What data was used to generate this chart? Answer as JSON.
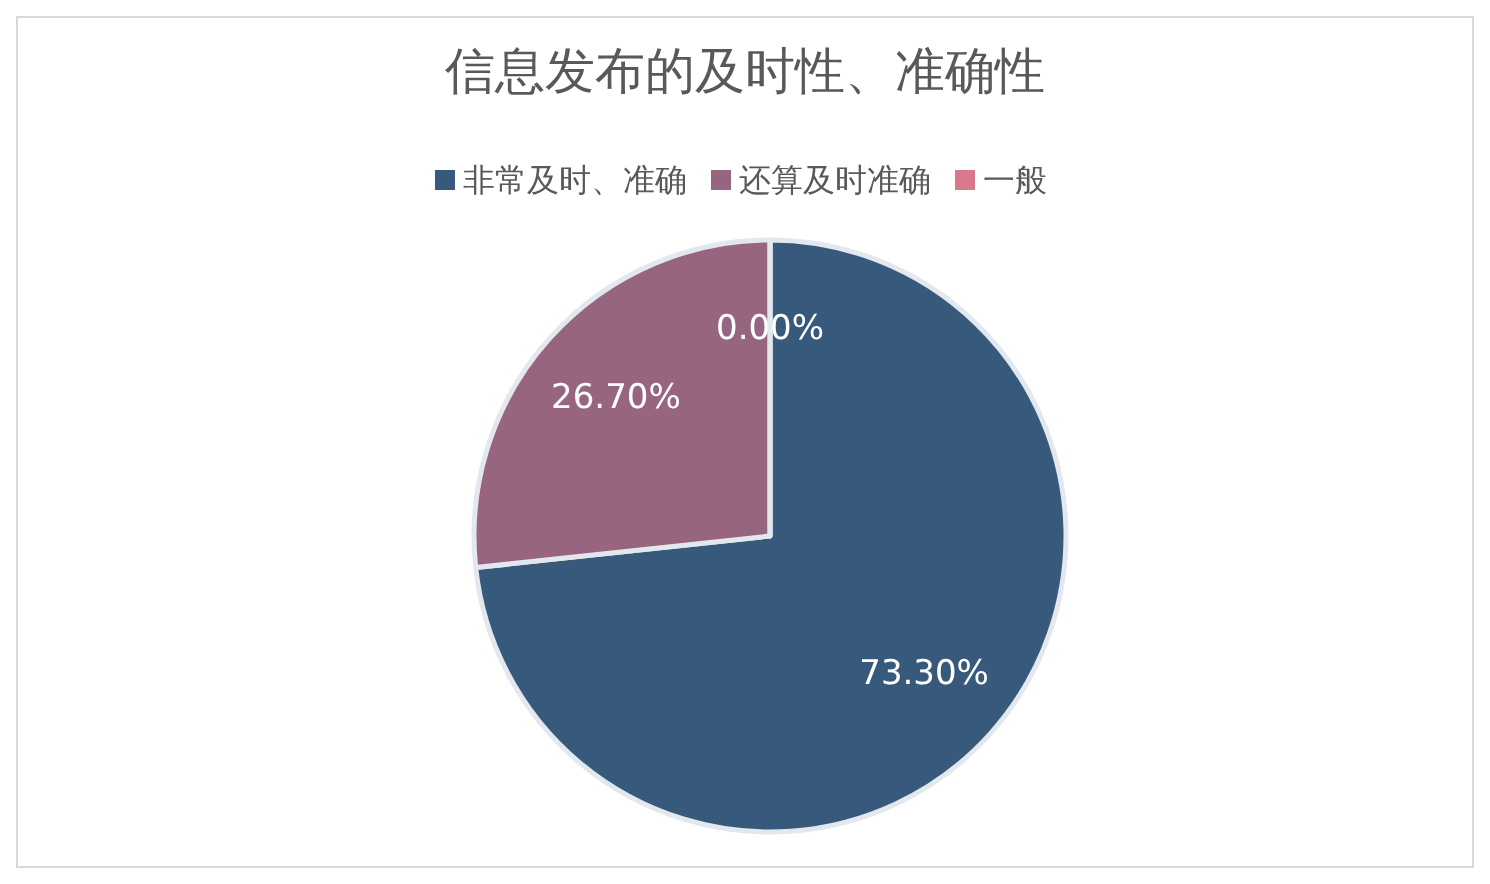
{
  "chart_data": {
    "type": "pie",
    "title": "信息发布的及时性、准确性",
    "categories": [
      "非常及时、准确",
      "还算及时准确",
      "一般"
    ],
    "values": [
      73.3,
      26.7,
      0
    ],
    "colors": [
      "#375a7c",
      "#976580",
      "#d9788a"
    ],
    "value_labels": [
      "73.30%",
      "26.70%",
      "0.00%"
    ],
    "legend": "top"
  }
}
